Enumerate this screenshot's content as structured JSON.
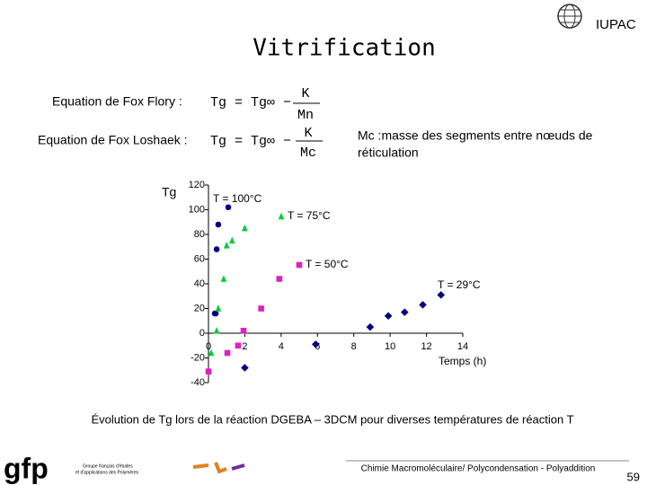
{
  "logo": {
    "iupac": "IUPAC",
    "gfp": "gfp",
    "gfp_line1": "Groupe français d'études",
    "gfp_line2": "et d'applications des Polymères"
  },
  "title": "Vitrification",
  "equations": [
    {
      "label": "Equation de Fox Flory :",
      "formula": "Tg = Tg∞ −",
      "numerator": "K",
      "denominator": "Mn"
    },
    {
      "label": "Equation de Fox Loshaek :",
      "formula": "Tg = Tg∞ −",
      "numerator": "K",
      "denominator": "Mc"
    }
  ],
  "note": {
    "line1": "Mc :masse des segments entre nœuds de",
    "line2": "réticulation"
  },
  "chart_data": {
    "type": "scatter",
    "y_label": "Tg",
    "x_label": "Temps (h)",
    "xlim": [
      0,
      14
    ],
    "xticks": [
      0,
      2,
      4,
      6,
      8,
      10,
      12,
      14
    ],
    "ylim": [
      -40,
      120
    ],
    "yticks": [
      -40,
      -20,
      0,
      20,
      40,
      60,
      80,
      100,
      120
    ],
    "series": [
      {
        "name": "T = 100°C",
        "color": "#000080",
        "marker": "circle",
        "x": [
          1.09,
          0.54,
          0.45,
          0.4,
          0.35
        ],
        "values": [
          102,
          88,
          68,
          16,
          16
        ]
      },
      {
        "name": "T = 75°C",
        "color": "#00cc33",
        "marker": "triangle",
        "x": [
          2.0,
          1.3,
          1.0,
          0.84,
          0.54,
          0.45,
          0.15
        ],
        "values": [
          85,
          75,
          71,
          44,
          20,
          2,
          -16
        ]
      },
      {
        "name": "T = 50°C",
        "color": "#e020c0",
        "marker": "square",
        "x": [
          3.9,
          2.9,
          1.93,
          1.63,
          1.04,
          0
        ],
        "values": [
          44,
          20,
          2,
          -10,
          -16,
          -31
        ]
      },
      {
        "name": "T = 29°C",
        "color": "#000080",
        "marker": "diamond",
        "x": [
          12.8,
          11.8,
          10.8,
          9.9,
          8.9,
          5.9,
          2.0
        ],
        "values": [
          31,
          23,
          17,
          14,
          5,
          -9,
          -28
        ]
      }
    ]
  },
  "caption": "Évolution de Tg lors de la réaction DGEBA – 3DCM pour diverses températures de réaction T",
  "footer": {
    "text": "Chimie Macromoléculaire/ Polycondensation - Polyaddition",
    "page": "59"
  }
}
